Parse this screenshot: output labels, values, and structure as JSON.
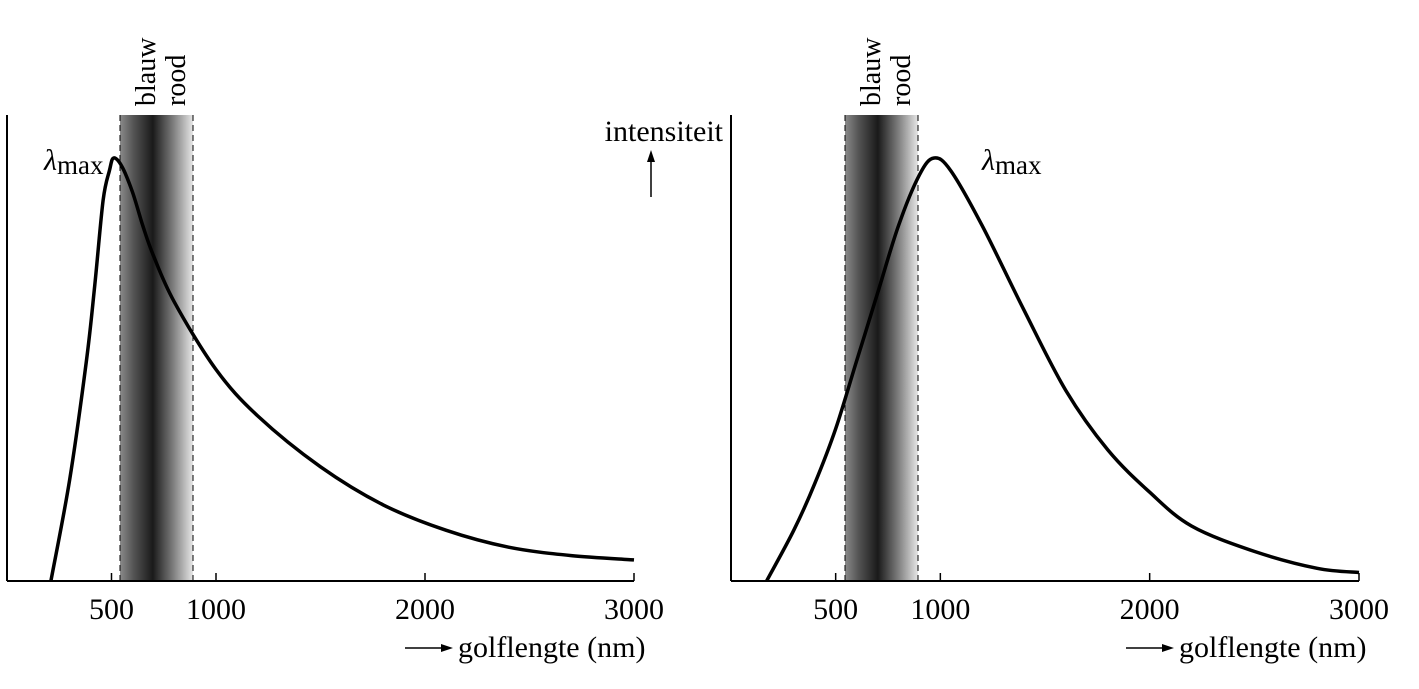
{
  "colors": {
    "ink": "#000000",
    "band_dark": "#1a1a1a",
    "band_light": "#e6e6e6",
    "background": "#ffffff"
  },
  "visible_band": {
    "labels": [
      "blauw",
      "rood"
    ],
    "range": [
      380,
      750
    ]
  },
  "shared_labels": {
    "ylabel": "intensiteit",
    "xlabel": "golflengte (nm)",
    "peak_label_symbol": "λ",
    "peak_label_sub": "max"
  },
  "chart_data": [
    {
      "type": "line",
      "title": "",
      "xlabel": "golflengte (nm)",
      "ylabel": "",
      "xlim": [
        0,
        3000
      ],
      "ylim": [
        0,
        1
      ],
      "xticks": [
        500,
        1000,
        2000,
        3000
      ],
      "xtick_labels": [
        "500",
        "1000",
        "2000",
        "3000"
      ],
      "grid": false,
      "peak_x": 510,
      "series": [
        {
          "points": [
            [
              210,
              0.0
            ],
            [
              300,
              0.24
            ],
            [
              380,
              0.52
            ],
            [
              420,
              0.7
            ],
            [
              460,
              0.9
            ],
            [
              490,
              0.97
            ],
            [
              510,
              1.0
            ],
            [
              550,
              0.98
            ],
            [
              600,
              0.92
            ],
            [
              650,
              0.84
            ],
            [
              700,
              0.77
            ],
            [
              800,
              0.66
            ],
            [
              1000,
              0.5
            ],
            [
              1200,
              0.39
            ],
            [
              1500,
              0.27
            ],
            [
              1800,
              0.18
            ],
            [
              2100,
              0.12
            ],
            [
              2400,
              0.08
            ],
            [
              2700,
              0.06
            ],
            [
              3000,
              0.05
            ]
          ]
        }
      ]
    },
    {
      "type": "line",
      "title": "",
      "xlabel": "golflengte (nm)",
      "ylabel": "intensiteit",
      "xlim": [
        0,
        3000
      ],
      "ylim": [
        0,
        1
      ],
      "xticks": [
        500,
        1000,
        2000,
        3000
      ],
      "xtick_labels": [
        "500",
        "1000",
        "2000",
        "3000"
      ],
      "grid": false,
      "peak_x": 970,
      "series": [
        {
          "points": [
            [
              170,
              0.0
            ],
            [
              300,
              0.12
            ],
            [
              400,
              0.23
            ],
            [
              500,
              0.36
            ],
            [
              600,
              0.52
            ],
            [
              700,
              0.68
            ],
            [
              800,
              0.84
            ],
            [
              900,
              0.96
            ],
            [
              970,
              1.0
            ],
            [
              1050,
              0.97
            ],
            [
              1200,
              0.84
            ],
            [
              1400,
              0.64
            ],
            [
              1600,
              0.45
            ],
            [
              1800,
              0.31
            ],
            [
              2000,
              0.21
            ],
            [
              2200,
              0.13
            ],
            [
              2500,
              0.07
            ],
            [
              2800,
              0.03
            ],
            [
              3000,
              0.02
            ]
          ]
        }
      ]
    }
  ]
}
